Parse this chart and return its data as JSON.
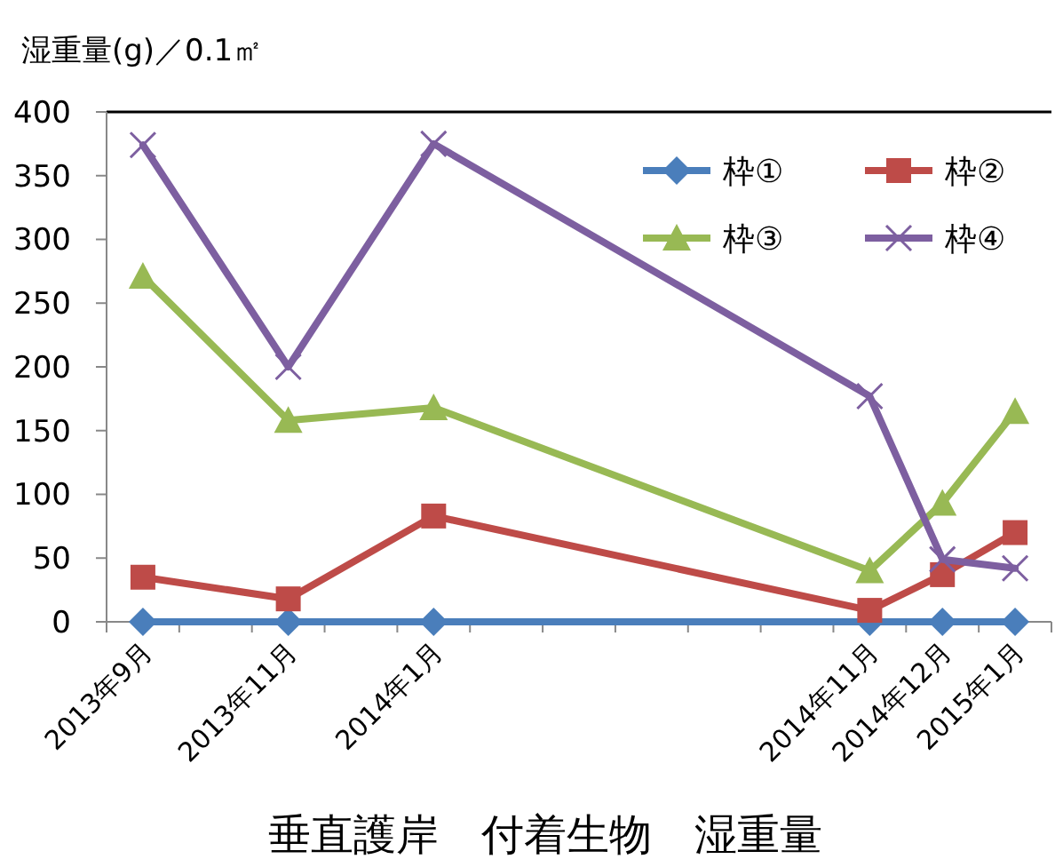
{
  "chart_data": {
    "type": "line",
    "title": "垂直護岸　付着生物　湿重量",
    "ylabel": "湿重量(g)／0.1㎡",
    "categories": [
      "2013年9月",
      null,
      "2013年11月",
      null,
      "2014年1月",
      null,
      null,
      null,
      null,
      null,
      "2014年11月",
      "2014年12月",
      "2015年1月"
    ],
    "ylim": [
      0,
      400
    ],
    "yticks": [
      0,
      50,
      100,
      150,
      200,
      250,
      300,
      350,
      400
    ],
    "legend": "top right",
    "series": [
      {
        "name": "枠①",
        "color": "#4a7ebb",
        "marker": "diamond",
        "values": [
          0,
          null,
          0,
          null,
          0,
          null,
          null,
          null,
          null,
          null,
          0,
          0,
          0
        ]
      },
      {
        "name": "枠②",
        "color": "#be4b48",
        "marker": "square",
        "values": [
          35,
          null,
          18,
          null,
          83,
          null,
          null,
          null,
          null,
          null,
          9,
          37,
          70
        ]
      },
      {
        "name": "枠③",
        "color": "#98b954",
        "marker": "triangle",
        "values": [
          271,
          null,
          158,
          null,
          168,
          null,
          null,
          null,
          null,
          null,
          40,
          93,
          165
        ]
      },
      {
        "name": "枠④",
        "color": "#7d5fa0",
        "marker": "cross",
        "values": [
          374,
          null,
          200,
          null,
          375,
          null,
          null,
          null,
          null,
          null,
          177,
          49,
          42
        ]
      }
    ]
  }
}
